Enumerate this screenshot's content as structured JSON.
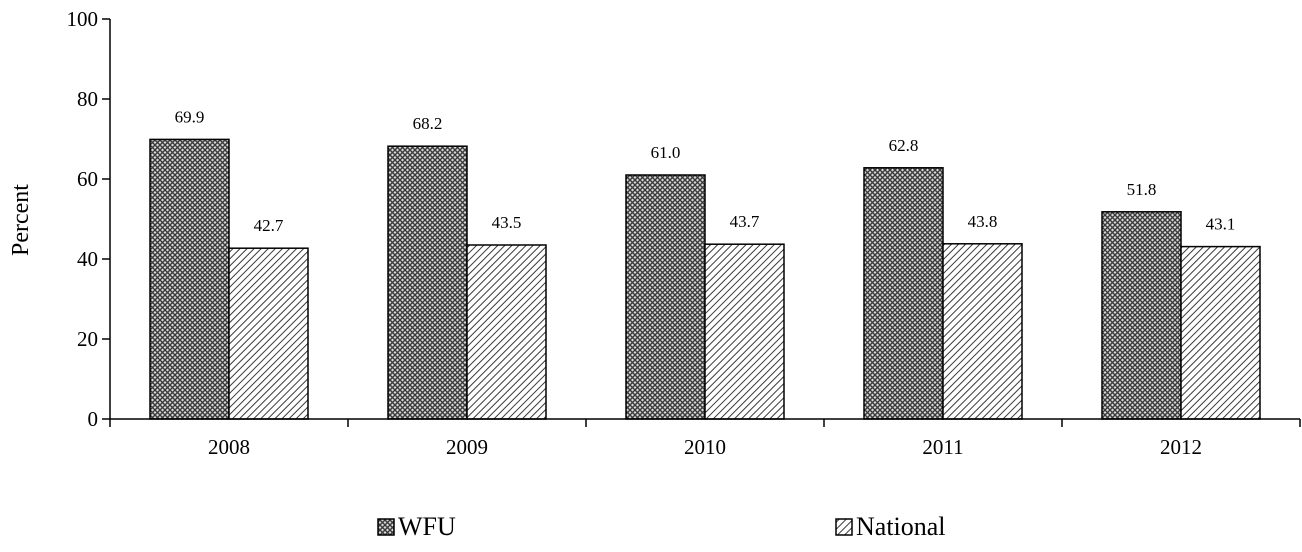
{
  "chart_data": {
    "type": "bar",
    "title": "",
    "xlabel": "",
    "ylabel": "Percent",
    "ylim": [
      0,
      100
    ],
    "yticks": [
      0,
      20,
      40,
      60,
      80,
      100
    ],
    "grid": false,
    "legend_position": "bottom",
    "categories": [
      "2008",
      "2009",
      "2010",
      "2011",
      "2012"
    ],
    "series": [
      {
        "name": "WFU",
        "values": [
          69.9,
          68.2,
          61.0,
          62.8,
          51.8
        ],
        "value_labels": [
          "69.9",
          "68.2",
          "61.0",
          "62.8",
          "51.8"
        ],
        "pattern": "crosshatch",
        "color": "#444444"
      },
      {
        "name": "National",
        "values": [
          42.7,
          43.5,
          43.7,
          43.8,
          43.1
        ],
        "value_labels": [
          "42.7",
          "43.5",
          "43.7",
          "43.8",
          "43.1"
        ],
        "pattern": "diagonal",
        "color": "#333333"
      }
    ]
  }
}
